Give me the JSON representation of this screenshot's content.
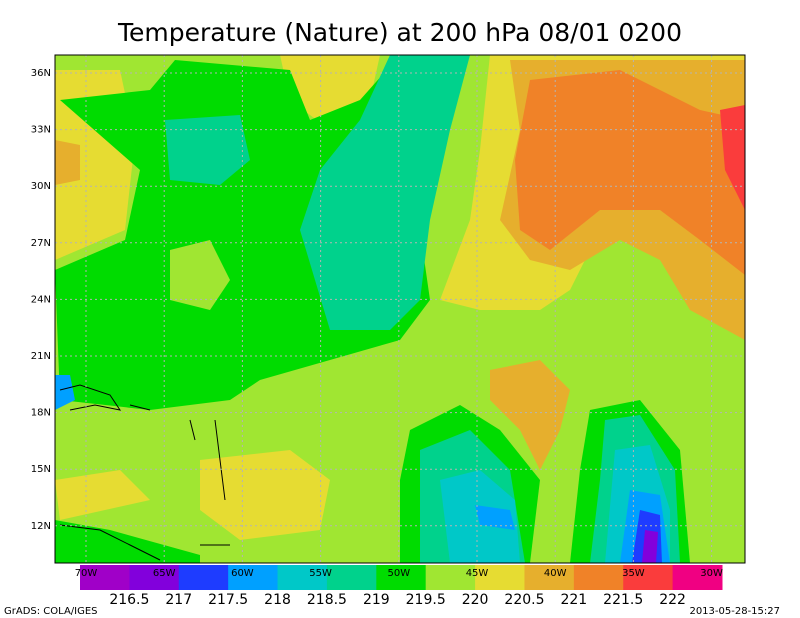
{
  "title": "Temperature (Nature) at 200 hPa 08/01 0200",
  "latitude_labels": [
    "36N",
    "33N",
    "30N",
    "27N",
    "24N",
    "21N",
    "18N",
    "15N",
    "12N"
  ],
  "longitude_labels": [
    "70W",
    "65W",
    "60W",
    "55W",
    "50W",
    "45W",
    "40W",
    "35W",
    "30W"
  ],
  "colorbar": {
    "labels": [
      "216.5",
      "217",
      "217.5",
      "218",
      "218.5",
      "219",
      "219.5",
      "220",
      "220.5",
      "221",
      "221.5",
      "222"
    ],
    "colors": [
      "#a000c8",
      "#8200dc",
      "#1e3cff",
      "#00a0ff",
      "#00c8c8",
      "#00d28c",
      "#00dc00",
      "#a0e632",
      "#e6dc32",
      "#e6af2d",
      "#f08228",
      "#fa3c3c",
      "#f00082"
    ]
  },
  "footer": {
    "left": "GrADS: COLA/IGES",
    "right": "2013-05-28-15:27"
  }
}
